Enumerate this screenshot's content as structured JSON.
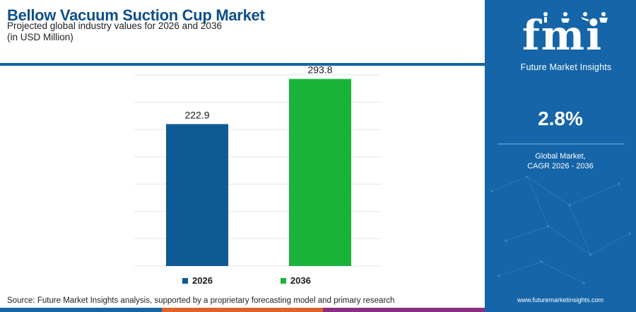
{
  "header": {
    "title": "Bellow Vacuum Suction Cup Market",
    "subtitle": "Projected global industry values for 2026 and 2036",
    "unit": "(in USD Million)"
  },
  "chart_data": {
    "type": "bar",
    "categories": [
      "2026",
      "2036"
    ],
    "values": [
      222.9,
      293.8
    ],
    "value_labels": [
      "222.9",
      "293.8"
    ],
    "colors": [
      "#0e5a94",
      "#1ab33a"
    ],
    "ylim": [
      0,
      300
    ],
    "grid": true,
    "legend_position": "bottom",
    "legend": [
      {
        "label": "2026",
        "color": "#0e5a94"
      },
      {
        "label": "2036",
        "color": "#1ab33a"
      }
    ]
  },
  "footer": {
    "source": "Source: Future Market Insights analysis, supported by a proprietary forecasting model and primary research",
    "bar_colors": [
      "#1565a8",
      "#e0612a",
      "#8a2f7f"
    ]
  },
  "panel": {
    "logo_text": "fmi",
    "logo_subtext": "Future Market Insights",
    "cagr_value": "2.8%",
    "cagr_label_line1": "Global Market,",
    "cagr_label_line2": "CAGR 2026 - 2036",
    "website": "www.futuremarketinsights.com",
    "background": "#1565a8"
  }
}
